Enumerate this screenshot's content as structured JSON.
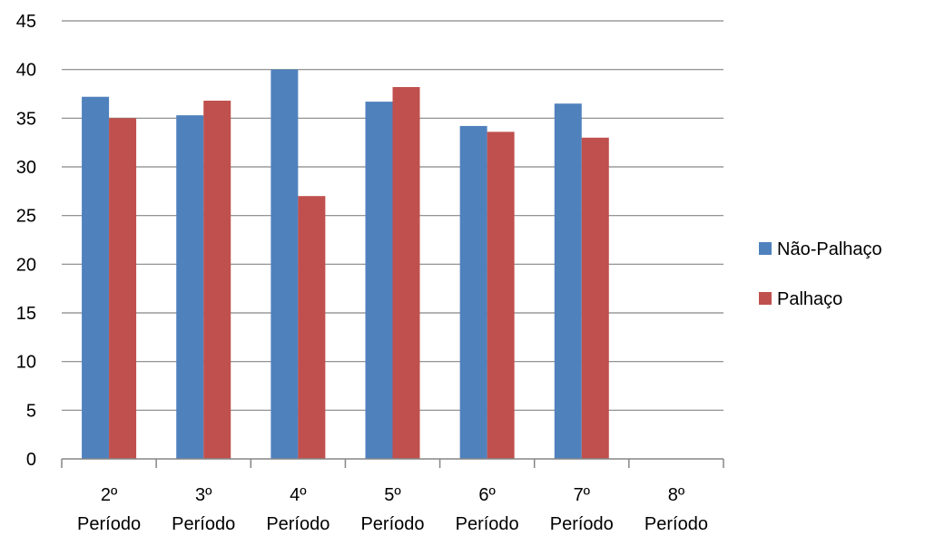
{
  "chart_data": {
    "type": "bar",
    "title": "",
    "xlabel": "",
    "ylabel": "",
    "categories": [
      [
        "2º",
        "Período"
      ],
      [
        "3º",
        "Período"
      ],
      [
        "4º",
        "Período"
      ],
      [
        "5º",
        "Período"
      ],
      [
        "6º",
        "Período"
      ],
      [
        "7º",
        "Período"
      ],
      [
        "8º",
        "Período"
      ]
    ],
    "series": [
      {
        "name": "Não-Palhaço",
        "color": "#4F81BD",
        "values": [
          37.2,
          35.3,
          40.0,
          36.7,
          34.2,
          36.5,
          null
        ]
      },
      {
        "name": "Palhaço",
        "color": "#C0504D",
        "values": [
          35.0,
          36.8,
          27.0,
          38.2,
          33.6,
          33.0,
          null
        ]
      }
    ],
    "ylim": [
      0,
      45
    ],
    "yticks": [
      0,
      5,
      10,
      15,
      20,
      25,
      30,
      35,
      40,
      45
    ],
    "grid": true,
    "legend_position": "right"
  }
}
